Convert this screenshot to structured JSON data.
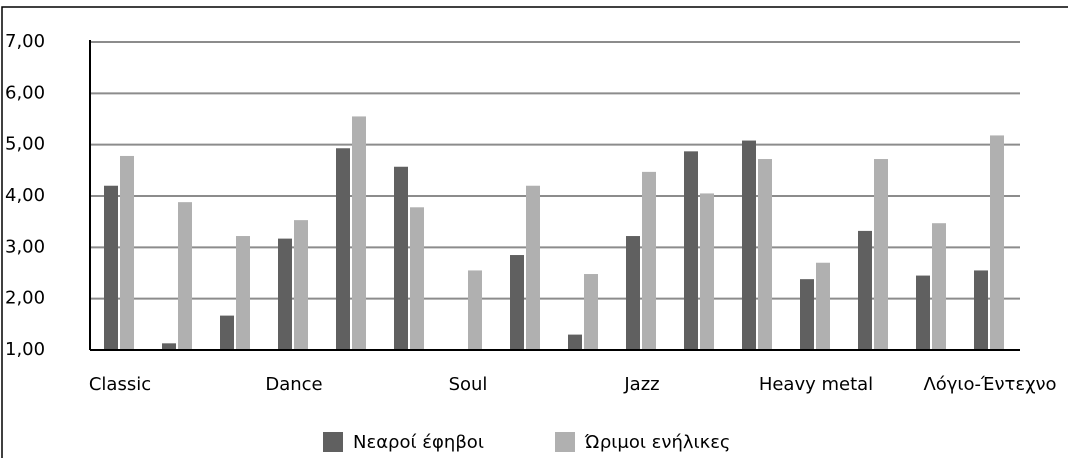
{
  "chart_data": {
    "type": "bar",
    "categories": [
      "Classic",
      null,
      null,
      "Dance",
      null,
      null,
      "Soul",
      null,
      null,
      "Jazz",
      null,
      null,
      "Heavy metal",
      null,
      null,
      "Λόγιο-Έντεχνο"
    ],
    "series": [
      {
        "name": "Νεαροί έφηβοι",
        "color": "#606060",
        "values": [
          4.2,
          1.13,
          1.67,
          3.17,
          4.93,
          4.57,
          1.0,
          2.85,
          1.3,
          3.22,
          4.87,
          5.08,
          2.38,
          3.32,
          2.45,
          2.55
        ]
      },
      {
        "name": "Ώριμοι ενήλικες",
        "color": "#b0b0b0",
        "values": [
          4.78,
          3.88,
          3.22,
          3.53,
          5.55,
          3.78,
          2.55,
          4.2,
          2.48,
          4.47,
          4.05,
          4.72,
          2.7,
          4.72,
          3.47,
          5.18
        ]
      }
    ],
    "ylim": [
      1,
      7
    ],
    "yticks": [
      {
        "value": 1,
        "label": "1,00"
      },
      {
        "value": 2,
        "label": "2,00"
      },
      {
        "value": 3,
        "label": "3,00"
      },
      {
        "value": 4,
        "label": "4,00"
      },
      {
        "value": 5,
        "label": "5,00"
      },
      {
        "value": 6,
        "label": "6,00"
      },
      {
        "value": 7,
        "label": "7,00"
      }
    ],
    "grid": true,
    "legend": "bottom"
  }
}
